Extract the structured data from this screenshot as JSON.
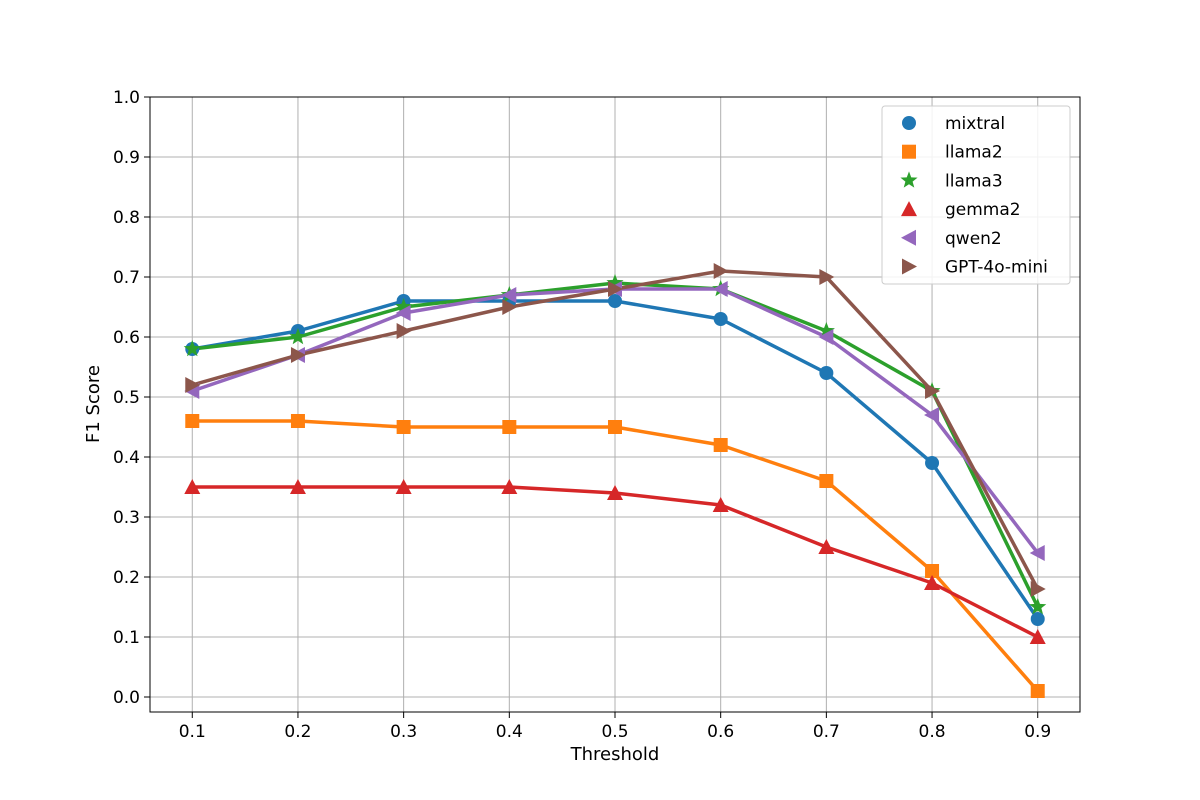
{
  "chart_data": {
    "type": "line",
    "title": "",
    "xlabel": "Threshold",
    "ylabel": "F1 Score",
    "x": [
      0.1,
      0.2,
      0.3,
      0.4,
      0.5,
      0.6,
      0.7,
      0.8,
      0.9
    ],
    "x_tick_labels": [
      "0.1",
      "0.2",
      "0.3",
      "0.4",
      "0.5",
      "0.6",
      "0.7",
      "0.8",
      "0.9"
    ],
    "xlim": [
      0.06,
      0.94
    ],
    "ylim": [
      -0.025,
      1.0
    ],
    "y_ticks": [
      0.0,
      0.1,
      0.2,
      0.3,
      0.4,
      0.5,
      0.6,
      0.7,
      0.8,
      0.9,
      1.0
    ],
    "y_tick_labels": [
      "0.0",
      "0.1",
      "0.2",
      "0.3",
      "0.4",
      "0.5",
      "0.6",
      "0.7",
      "0.8",
      "0.9",
      "1.0"
    ],
    "grid": true,
    "legend_position": "top-right",
    "series": [
      {
        "name": "mixtral",
        "color": "#1f77b4",
        "marker": "circle",
        "values": [
          0.58,
          0.61,
          0.66,
          0.66,
          0.66,
          0.63,
          0.54,
          0.39,
          0.13
        ]
      },
      {
        "name": "llama2",
        "color": "#ff7f0e",
        "marker": "square",
        "values": [
          0.46,
          0.46,
          0.45,
          0.45,
          0.45,
          0.42,
          0.36,
          0.21,
          0.01
        ]
      },
      {
        "name": "llama3",
        "color": "#2ca02c",
        "marker": "star",
        "values": [
          0.58,
          0.6,
          0.65,
          0.67,
          0.69,
          0.68,
          0.61,
          0.51,
          0.15
        ]
      },
      {
        "name": "gemma2",
        "color": "#d62728",
        "marker": "triangle-up",
        "values": [
          0.35,
          0.35,
          0.35,
          0.35,
          0.34,
          0.32,
          0.25,
          0.19,
          0.1
        ]
      },
      {
        "name": "qwen2",
        "color": "#9467bd",
        "marker": "triangle-left",
        "values": [
          0.51,
          0.57,
          0.64,
          0.67,
          0.68,
          0.68,
          0.6,
          0.47,
          0.24
        ]
      },
      {
        "name": "GPT-4o-mini",
        "color": "#8c564b",
        "marker": "triangle-right",
        "values": [
          0.52,
          0.57,
          0.61,
          0.65,
          0.68,
          0.71,
          0.7,
          0.51,
          0.18
        ]
      }
    ]
  }
}
